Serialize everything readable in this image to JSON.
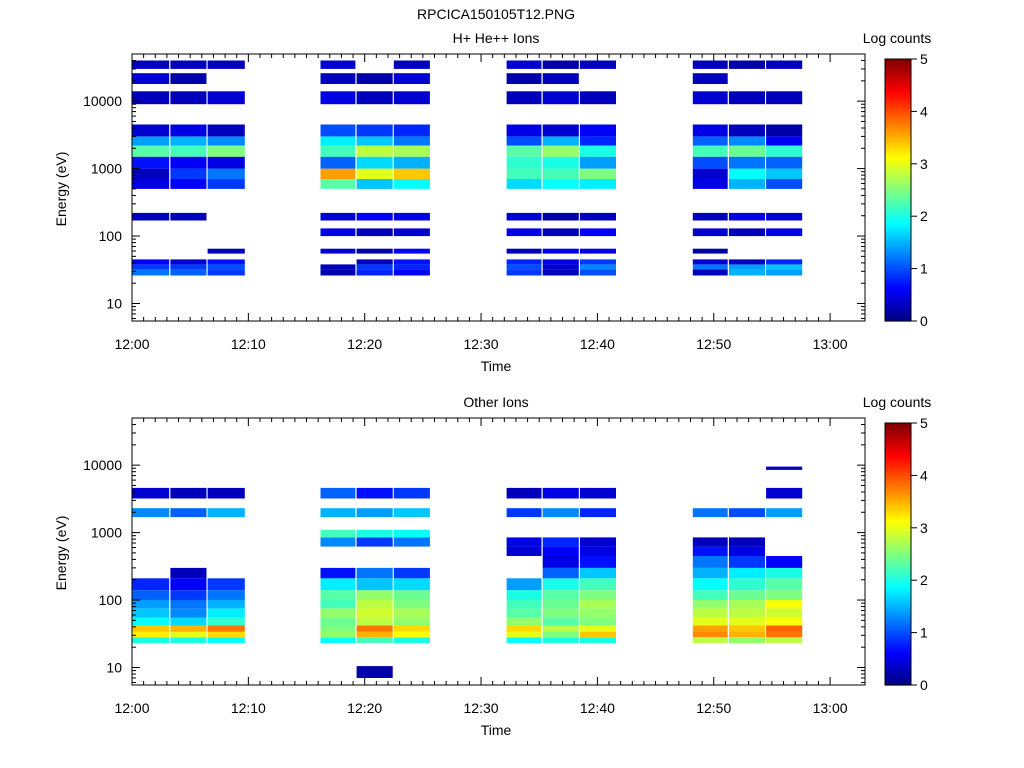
{
  "figure_title": "RPCICA150105T12.PNG",
  "colors": {
    "colormap": [
      "#00007f",
      "#0000ff",
      "#007fff",
      "#00ffff",
      "#7fff7f",
      "#ffff00",
      "#ff7f00",
      "#ff0000",
      "#7f0000"
    ]
  },
  "chart_data": [
    {
      "type": "heatmap",
      "title": "H+ He++ Ions",
      "xlabel": "Time",
      "ylabel": "Energy (eV)",
      "x_ticks": [
        "12:00",
        "12:10",
        "12:20",
        "12:30",
        "12:40",
        "12:50",
        "13:00"
      ],
      "y_ticks": [
        "10",
        "100",
        "1000",
        "10000"
      ],
      "y_scale": "log",
      "ylim": [
        5.5,
        50000
      ],
      "xlim_minutes": [
        0,
        63
      ],
      "colorbar": {
        "label": "Log counts",
        "ticks": [
          "0",
          "1",
          "2",
          "3",
          "4",
          "5"
        ],
        "range": [
          0,
          5
        ]
      },
      "time_bins_minutes": [
        [
          0,
          3.2
        ],
        [
          3.3,
          6.4
        ],
        [
          6.5,
          9.7
        ],
        [
          16.2,
          19.2
        ],
        [
          19.3,
          22.4
        ],
        [
          22.5,
          25.6
        ],
        [
          32.2,
          35.2
        ],
        [
          35.3,
          38.4
        ],
        [
          38.5,
          41.6
        ],
        [
          48.2,
          51.2
        ],
        [
          51.3,
          54.4
        ],
        [
          54.5,
          57.6
        ]
      ],
      "rows": [
        {
          "e": [
            26,
            32
          ],
          "v": [
            1.2,
            1.1,
            0.9,
            0.2,
            0.8,
            0.6,
            0.9,
            0.3,
            1.0,
            0.3,
            1.5,
            1.4
          ]
        },
        {
          "e": [
            32,
            38
          ],
          "v": [
            0.9,
            0.9,
            1.0,
            0.3,
            0.9,
            0.8,
            1.0,
            0.4,
            1.3,
            1.2,
            1.4,
            1.6
          ]
        },
        {
          "e": [
            38,
            45
          ],
          "v": [
            0.6,
            0.4,
            0.7,
            null,
            0.3,
            0.7,
            0.8,
            0.5,
            0.9,
            0.4,
            0.3,
            0.8
          ]
        },
        {
          "e": [
            55,
            65
          ],
          "v": [
            null,
            null,
            0.3,
            0.4,
            0.2,
            0.6,
            0.3,
            0.5,
            0.5,
            0.2,
            null,
            null
          ]
        },
        {
          "e": [
            100,
            130
          ],
          "v": [
            null,
            null,
            null,
            0.5,
            0.3,
            0.4,
            0.5,
            0.3,
            0.6,
            0.4,
            0.3,
            0.5
          ]
        },
        {
          "e": [
            170,
            220
          ],
          "v": [
            0.3,
            0.3,
            null,
            0.4,
            0.6,
            0.5,
            0.4,
            0.2,
            0.3,
            0.3,
            0.5,
            0.4
          ]
        },
        {
          "e": [
            500,
            700
          ],
          "v": [
            0.5,
            0.6,
            0.9,
            2.3,
            1.6,
            1.9,
            1.7,
            1.9,
            1.8,
            0.5,
            1.5,
            1.0
          ]
        },
        {
          "e": [
            700,
            1000
          ],
          "v": [
            0.3,
            0.9,
            1.2,
            3.6,
            3.0,
            3.4,
            2.2,
            2.2,
            2.5,
            0.4,
            1.9,
            1.6
          ]
        },
        {
          "e": [
            1000,
            1500
          ],
          "v": [
            0.7,
            0.6,
            0.5,
            1.1,
            1.7,
            1.5,
            2.1,
            2.0,
            1.4,
            1.0,
            1.2,
            1.1
          ]
        },
        {
          "e": [
            1500,
            2200
          ],
          "v": [
            2.3,
            2.2,
            2.5,
            2.2,
            2.8,
            2.7,
            2.3,
            2.6,
            2.0,
            2.2,
            2.4,
            2.1
          ]
        },
        {
          "e": [
            2200,
            3000
          ],
          "v": [
            1.4,
            1.5,
            1.3,
            1.8,
            1.6,
            1.2,
            1.0,
            1.5,
            0.8,
            1.1,
            1.3,
            0.6
          ]
        },
        {
          "e": [
            3000,
            4500
          ],
          "v": [
            0.4,
            0.5,
            0.3,
            1.0,
            0.9,
            0.8,
            0.5,
            0.4,
            0.6,
            0.5,
            0.3,
            0.2
          ]
        },
        {
          "e": [
            9000,
            14000
          ],
          "v": [
            0.3,
            0.3,
            0.4,
            0.5,
            0.3,
            0.4,
            0.3,
            0.4,
            0.3,
            0.4,
            0.3,
            0.3
          ]
        },
        {
          "e": [
            18000,
            26000
          ],
          "v": [
            0.4,
            0.2,
            null,
            0.3,
            0.2,
            0.4,
            0.2,
            0.3,
            null,
            0.3,
            null,
            null
          ]
        },
        {
          "e": [
            30000,
            40000
          ],
          "v": [
            0.3,
            0.3,
            0.3,
            0.4,
            null,
            0.3,
            0.4,
            0.2,
            0.3,
            0.3,
            0.2,
            0.3
          ]
        }
      ]
    },
    {
      "type": "heatmap",
      "title": "Other Ions",
      "xlabel": "Time",
      "ylabel": "Energy (eV)",
      "x_ticks": [
        "12:00",
        "12:10",
        "12:20",
        "12:30",
        "12:40",
        "12:50",
        "13:00"
      ],
      "y_ticks": [
        "10",
        "100",
        "1000",
        "10000"
      ],
      "y_scale": "log",
      "ylim": [
        5.5,
        50000
      ],
      "xlim_minutes": [
        0,
        63
      ],
      "colorbar": {
        "label": "Log counts",
        "ticks": [
          "0",
          "1",
          "2",
          "3",
          "4",
          "5"
        ],
        "range": [
          0,
          5
        ]
      },
      "time_bins_minutes": [
        [
          0,
          3.2
        ],
        [
          3.3,
          6.4
        ],
        [
          6.5,
          9.7
        ],
        [
          16.2,
          19.2
        ],
        [
          19.3,
          22.4
        ],
        [
          22.5,
          25.6
        ],
        [
          32.2,
          35.2
        ],
        [
          35.3,
          38.4
        ],
        [
          38.5,
          41.6
        ],
        [
          48.2,
          51.2
        ],
        [
          51.3,
          54.4
        ],
        [
          54.5,
          57.6
        ]
      ],
      "rows": [
        {
          "e": [
            7,
            10.5
          ],
          "v": [
            null,
            null,
            null,
            null,
            0.2,
            null,
            null,
            null,
            null,
            null,
            null,
            null
          ]
        },
        {
          "e": [
            23,
            28
          ],
          "v": [
            2.0,
            2.0,
            1.9,
            1.9,
            2.2,
            2.0,
            1.9,
            2.0,
            2.0,
            2.8,
            2.6,
            2.8
          ]
        },
        {
          "e": [
            28,
            34
          ],
          "v": [
            3.2,
            3.0,
            3.3,
            2.6,
            3.5,
            3.1,
            3.0,
            2.5,
            3.4,
            3.7,
            3.5,
            3.8
          ]
        },
        {
          "e": [
            34,
            42
          ],
          "v": [
            3.4,
            3.5,
            3.8,
            2.5,
            3.8,
            3.3,
            3.3,
            2.8,
            3.0,
            3.6,
            3.4,
            3.9
          ]
        },
        {
          "e": [
            42,
            55
          ],
          "v": [
            1.9,
            1.7,
            2.1,
            2.4,
            2.8,
            2.6,
            2.6,
            2.3,
            2.5,
            3.0,
            3.0,
            3.1
          ]
        },
        {
          "e": [
            55,
            75
          ],
          "v": [
            1.6,
            1.3,
            1.8,
            2.6,
            2.9,
            2.7,
            2.3,
            2.5,
            2.6,
            2.8,
            2.8,
            2.9
          ]
        },
        {
          "e": [
            75,
            100
          ],
          "v": [
            1.4,
            1.2,
            1.5,
            2.2,
            2.8,
            2.5,
            2.2,
            2.4,
            2.7,
            2.6,
            2.7,
            3.1
          ]
        },
        {
          "e": [
            100,
            140
          ],
          "v": [
            1.1,
            0.9,
            1.2,
            2.3,
            2.6,
            2.4,
            2.0,
            2.3,
            2.5,
            2.2,
            2.4,
            2.5
          ]
        },
        {
          "e": [
            140,
            210
          ],
          "v": [
            0.8,
            0.6,
            0.9,
            1.8,
            1.6,
            1.7,
            1.4,
            2.0,
            2.2,
            1.9,
            2.1,
            2.3
          ]
        },
        {
          "e": [
            210,
            300
          ],
          "v": [
            null,
            0.3,
            null,
            0.7,
            1.2,
            0.9,
            null,
            1.1,
            1.6,
            1.5,
            1.8,
            2.0
          ]
        },
        {
          "e": [
            300,
            450
          ],
          "v": [
            null,
            null,
            null,
            null,
            null,
            null,
            null,
            0.5,
            0.7,
            1.2,
            0.9,
            0.6
          ]
        },
        {
          "e": [
            450,
            620
          ],
          "v": [
            null,
            null,
            null,
            null,
            null,
            null,
            0.4,
            0.6,
            0.5,
            0.7,
            0.5,
            null
          ]
        },
        {
          "e": [
            620,
            850
          ],
          "v": [
            null,
            null,
            null,
            1.3,
            0.9,
            1.2,
            0.5,
            0.8,
            0.4,
            0.3,
            0.3,
            null
          ]
        },
        {
          "e": [
            850,
            1100
          ],
          "v": [
            null,
            null,
            null,
            2.2,
            2.0,
            1.9,
            null,
            null,
            null,
            null,
            null,
            null
          ]
        },
        {
          "e": [
            1700,
            2300
          ],
          "v": [
            1.3,
            1.1,
            1.5,
            1.5,
            1.4,
            1.6,
            0.9,
            1.3,
            0.8,
            1.2,
            1.0,
            1.4
          ]
        },
        {
          "e": [
            3200,
            4600
          ],
          "v": [
            0.4,
            0.3,
            0.3,
            1.1,
            0.7,
            0.9,
            0.3,
            0.5,
            0.4,
            null,
            null,
            0.4
          ]
        },
        {
          "e": [
            8500,
            9500
          ],
          "v": [
            null,
            null,
            null,
            null,
            null,
            null,
            null,
            null,
            null,
            null,
            null,
            0.3
          ]
        }
      ]
    }
  ]
}
